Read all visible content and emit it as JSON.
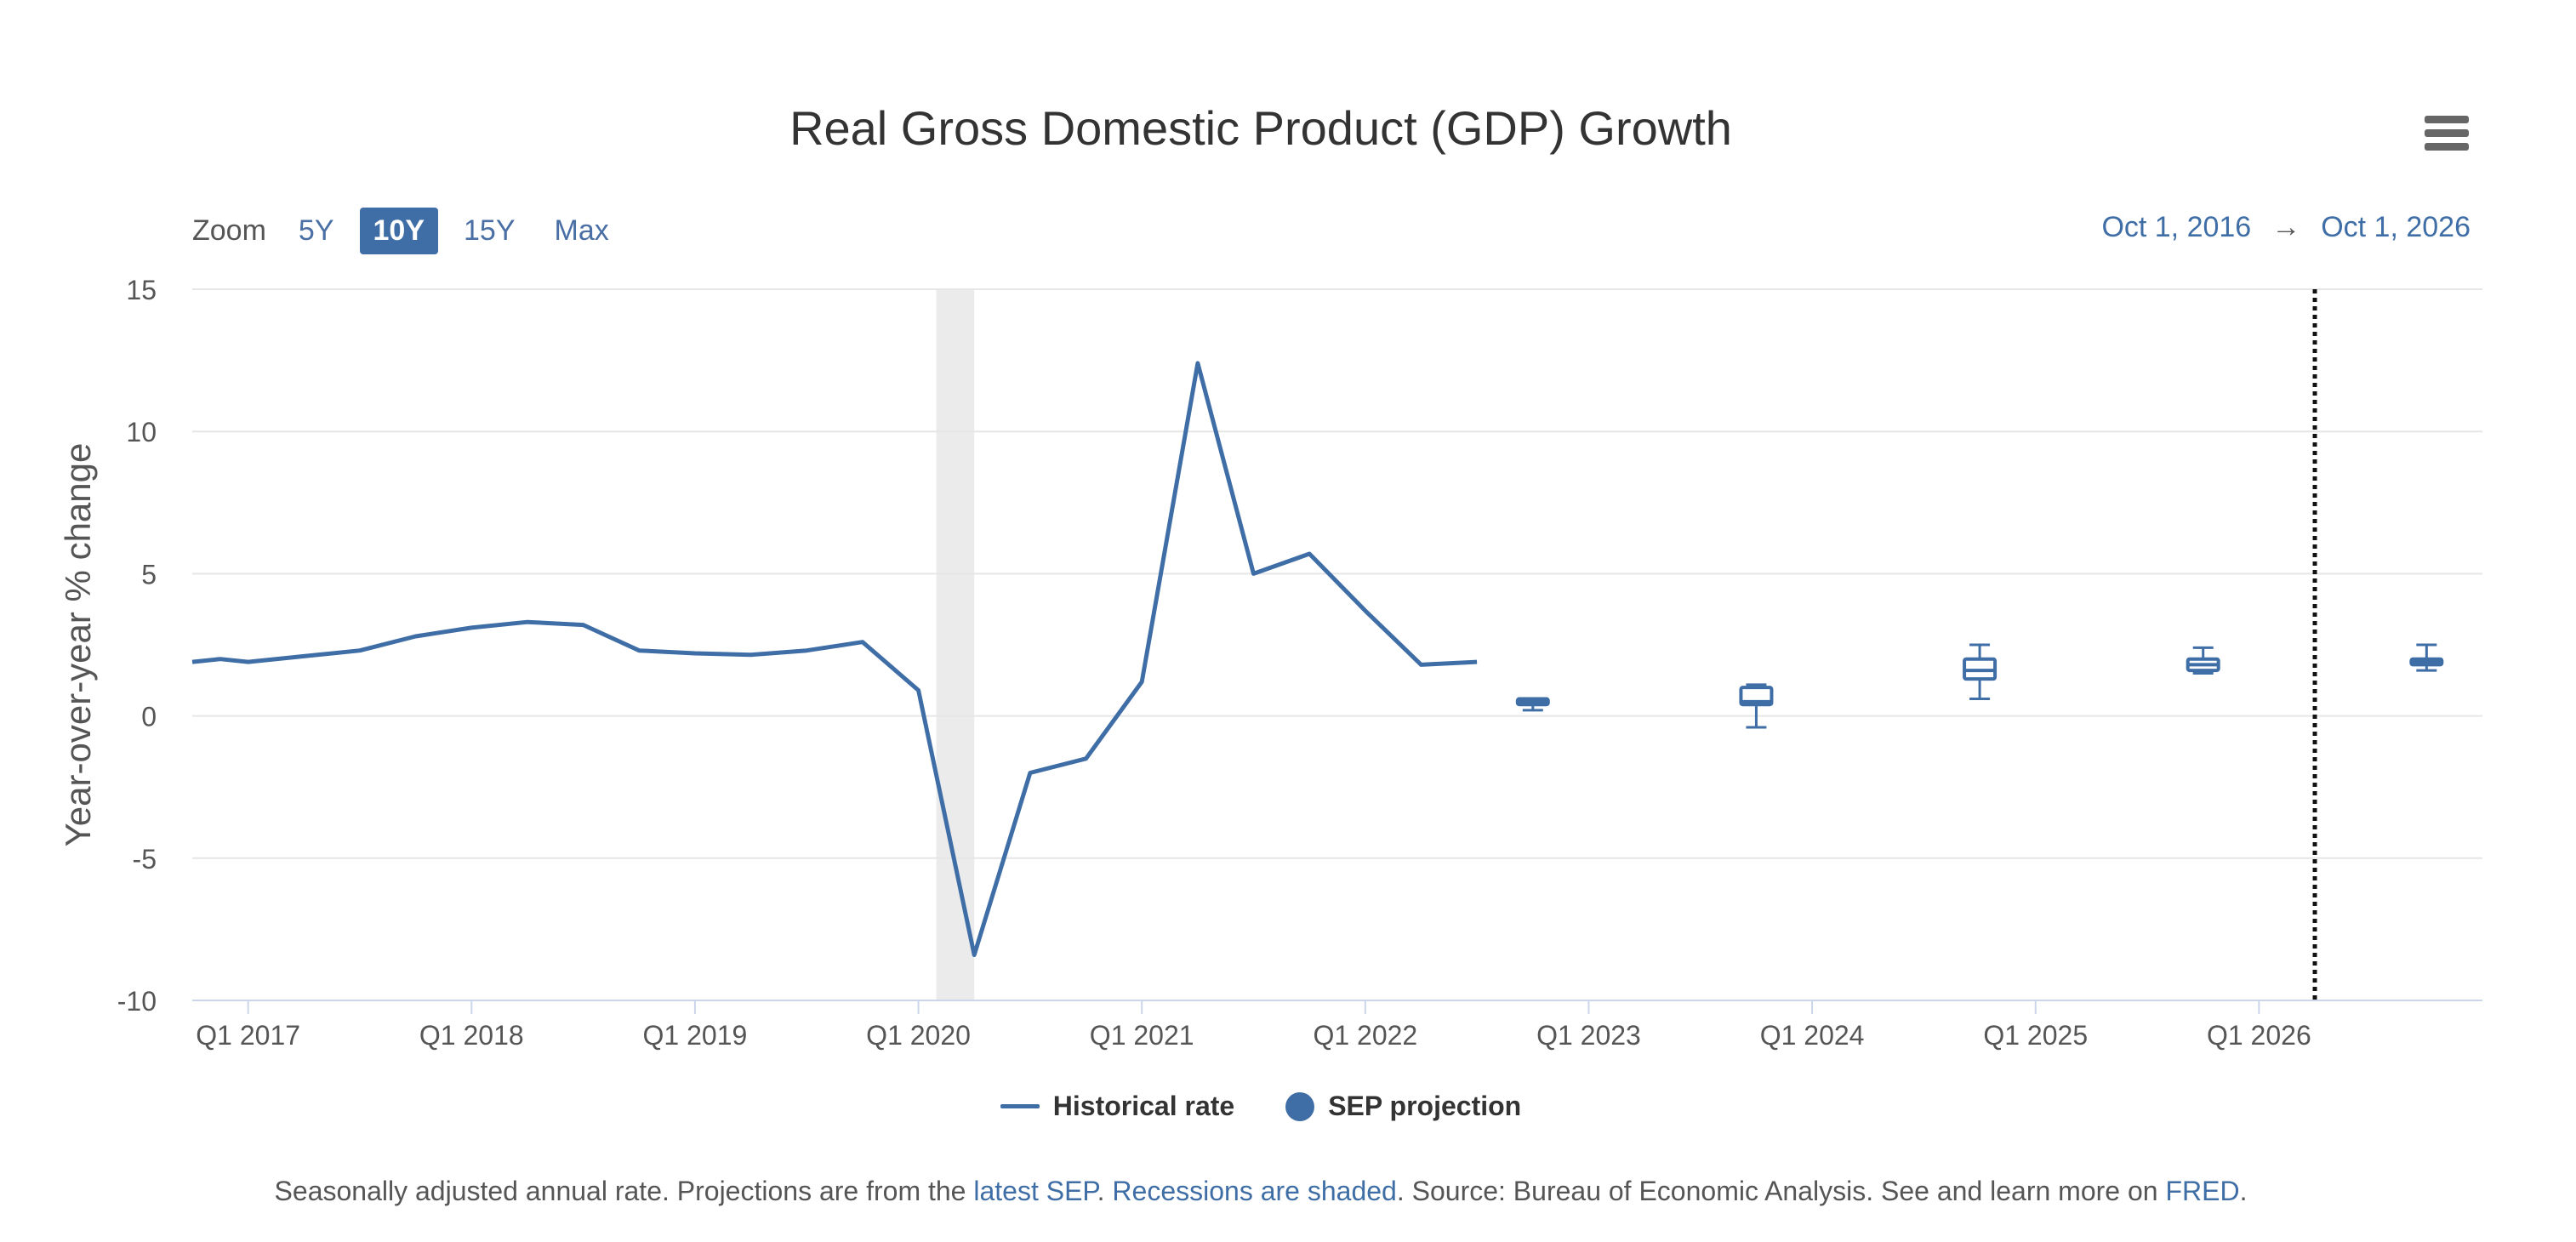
{
  "header": {
    "title": "Real Gross Domestic Product (GDP) Growth",
    "menu_icon": "hamburger-menu-icon"
  },
  "zoom": {
    "label": "Zoom",
    "options": [
      "5Y",
      "10Y",
      "15Y",
      "Max"
    ],
    "selected": "10Y"
  },
  "range": {
    "start": "Oct 1, 2016",
    "arrow": "→",
    "end": "Oct 1, 2026"
  },
  "legend": {
    "historical": "Historical rate",
    "projection": "SEP projection"
  },
  "footnote": {
    "p1": "Seasonally adjusted annual rate. Projections are from the ",
    "link1": "latest SEP",
    "p2": ". ",
    "link2": "Recessions are shaded",
    "p3": ". Source: Bureau of Economic Analysis. See and learn more on ",
    "link3": "FRED",
    "p4": "."
  },
  "colors": {
    "series": "#3f6ea6",
    "recession": "#ebebeb",
    "grid": "#e6e6e6",
    "axis": "#ccd6eb"
  },
  "chart_data": {
    "type": "line",
    "title": "Real Gross Domestic Product (GDP) Growth",
    "ylabel": "Year-over-year % change",
    "xlabel": "",
    "ylim": [
      -10,
      15
    ],
    "xlim": [
      2016.75,
      2027.0
    ],
    "yticks": [
      15,
      10,
      5,
      0,
      -5,
      -10
    ],
    "xticks": [
      {
        "label": "Q1 2017",
        "t": 2017.0
      },
      {
        "label": "Q1 2018",
        "t": 2018.0
      },
      {
        "label": "Q1 2019",
        "t": 2019.0
      },
      {
        "label": "Q1 2020",
        "t": 2020.0
      },
      {
        "label": "Q1 2021",
        "t": 2021.0
      },
      {
        "label": "Q1 2022",
        "t": 2022.0
      },
      {
        "label": "Q1 2023",
        "t": 2023.0
      },
      {
        "label": "Q1 2024",
        "t": 2024.0
      },
      {
        "label": "Q1 2025",
        "t": 2025.0
      },
      {
        "label": "Q1 2026",
        "t": 2026.0
      }
    ],
    "grid": true,
    "legend_position": "bottom-center",
    "recessions": [
      {
        "start": 2020.08,
        "end": 2020.25
      }
    ],
    "today_marker": 2026.25,
    "series": [
      {
        "name": "Historical rate",
        "points": [
          [
            2016.75,
            1.9
          ],
          [
            2016.875,
            2.0
          ],
          [
            2017.0,
            1.9
          ],
          [
            2017.25,
            2.1
          ],
          [
            2017.5,
            2.3
          ],
          [
            2017.75,
            2.8
          ],
          [
            2018.0,
            3.1
          ],
          [
            2018.25,
            3.3
          ],
          [
            2018.5,
            3.2
          ],
          [
            2018.75,
            2.3
          ],
          [
            2019.0,
            2.2
          ],
          [
            2019.25,
            2.15
          ],
          [
            2019.5,
            2.3
          ],
          [
            2019.75,
            2.6
          ],
          [
            2020.0,
            0.9
          ],
          [
            2020.25,
            -8.4
          ],
          [
            2020.5,
            -2.0
          ],
          [
            2020.75,
            -1.5
          ],
          [
            2021.0,
            1.2
          ],
          [
            2021.25,
            12.4
          ],
          [
            2021.5,
            5.0
          ],
          [
            2021.75,
            5.7
          ],
          [
            2022.0,
            3.7
          ],
          [
            2022.25,
            1.8
          ],
          [
            2022.5,
            1.9
          ]
        ]
      },
      {
        "name": "SEP projection",
        "type": "boxplot",
        "boxes": [
          {
            "t": 2022.75,
            "low": 0.2,
            "q1": 0.4,
            "median": 0.5,
            "q3": 0.6,
            "high": 0.6
          },
          {
            "t": 2023.75,
            "low": -0.4,
            "q1": 0.4,
            "median": 0.5,
            "q3": 1.0,
            "high": 1.1
          },
          {
            "t": 2024.75,
            "low": 0.6,
            "q1": 1.3,
            "median": 1.6,
            "q3": 2.0,
            "high": 2.5
          },
          {
            "t": 2025.75,
            "low": 1.5,
            "q1": 1.6,
            "median": 1.8,
            "q3": 2.0,
            "high": 2.4
          },
          {
            "t": 2026.75,
            "low": 1.6,
            "q1": 1.8,
            "median": 1.9,
            "q3": 2.0,
            "high": 2.5
          }
        ]
      }
    ]
  }
}
